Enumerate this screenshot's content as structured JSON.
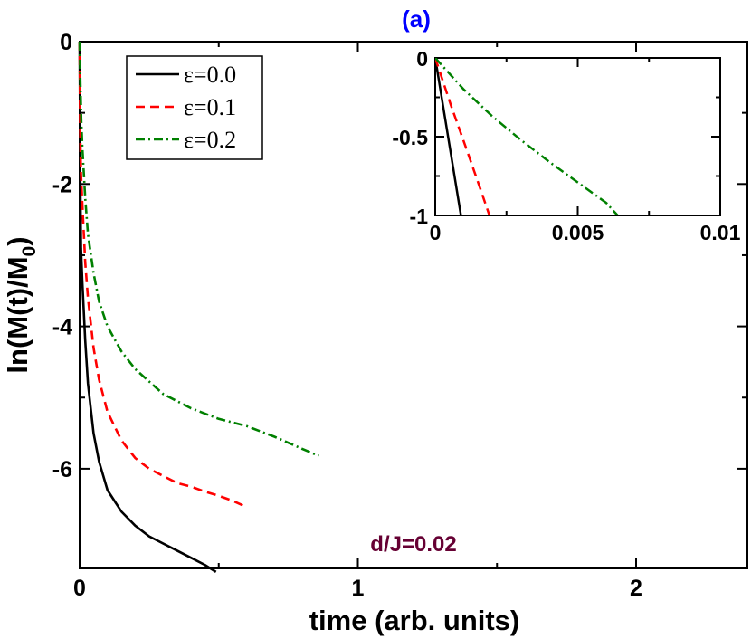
{
  "chart_data": [
    {
      "type": "line",
      "title": "(a)",
      "xlabel": "time (arb. units)",
      "ylabel": "ln(M(t)/M",
      "ylabel_sub": "0",
      "ylabel_close": ")",
      "xlim": [
        0,
        2.4
      ],
      "ylim": [
        -7.4,
        0
      ],
      "xticks": [
        0,
        1,
        2
      ],
      "xtick_labels": [
        "0",
        "1",
        "2"
      ],
      "yticks": [
        0,
        -2,
        -4,
        -6
      ],
      "ytick_labels": [
        "0",
        "-2",
        "-4",
        "-6"
      ],
      "grid": false,
      "legend_position": "top-left",
      "annotation": "d/J=0.02",
      "series": [
        {
          "name": "ε=0.0",
          "color": "#000000",
          "dash": "solid",
          "x": [
            0,
            0.002,
            0.005,
            0.01,
            0.02,
            0.03,
            0.05,
            0.07,
            0.1,
            0.15,
            0.2,
            0.25,
            0.3,
            0.35,
            0.4,
            0.45,
            0.49
          ],
          "y": [
            0,
            -1.7,
            -2.9,
            -3.4,
            -4.2,
            -4.8,
            -5.5,
            -5.9,
            -6.3,
            -6.6,
            -6.8,
            -6.95,
            -7.05,
            -7.15,
            -7.25,
            -7.35,
            -7.45
          ]
        },
        {
          "name": "ε=0.1",
          "color": "#ff0000",
          "dash": "dashed",
          "x": [
            0,
            0.002,
            0.005,
            0.01,
            0.02,
            0.03,
            0.05,
            0.07,
            0.1,
            0.15,
            0.2,
            0.25,
            0.3,
            0.35,
            0.4,
            0.45,
            0.5,
            0.55,
            0.59
          ],
          "y": [
            0,
            -1.2,
            -1.85,
            -2.3,
            -3.1,
            -3.6,
            -4.3,
            -4.75,
            -5.2,
            -5.6,
            -5.85,
            -6.0,
            -6.1,
            -6.2,
            -6.25,
            -6.32,
            -6.38,
            -6.45,
            -6.52
          ]
        },
        {
          "name": "ε=0.2",
          "color": "#008000",
          "dash": "dashdot",
          "x": [
            0,
            0.003,
            0.006,
            0.01,
            0.02,
            0.03,
            0.05,
            0.07,
            0.1,
            0.15,
            0.2,
            0.3,
            0.4,
            0.5,
            0.6,
            0.7,
            0.8,
            0.86
          ],
          "y": [
            0,
            -0.6,
            -1.1,
            -1.5,
            -2.2,
            -2.7,
            -3.25,
            -3.65,
            -4.0,
            -4.35,
            -4.6,
            -4.95,
            -5.15,
            -5.3,
            -5.4,
            -5.55,
            -5.72,
            -5.82
          ]
        }
      ]
    },
    {
      "type": "line",
      "title": "",
      "xlabel": "",
      "ylabel": "",
      "xlim": [
        0,
        0.01
      ],
      "ylim": [
        -1,
        0
      ],
      "xticks": [
        0,
        0.005,
        0.01
      ],
      "xtick_labels": [
        "0",
        "0.005",
        "0.01"
      ],
      "yticks": [
        0,
        -0.5,
        -1
      ],
      "ytick_labels": [
        "0",
        "-0.5",
        "-1"
      ],
      "grid": false,
      "legend_position": "none",
      "series": [
        {
          "name": "",
          "color": "#000000",
          "dash": "solid",
          "x": [
            0,
            0.0009
          ],
          "y": [
            0,
            -1.0
          ]
        },
        {
          "name": "",
          "color": "#ff0000",
          "dash": "dashed",
          "x": [
            0,
            0.00055,
            0.0011,
            0.0016,
            0.0019
          ],
          "y": [
            0,
            -0.3,
            -0.58,
            -0.84,
            -1.0
          ]
        },
        {
          "name": "",
          "color": "#008000",
          "dash": "dashdot",
          "x": [
            0,
            0.001,
            0.002,
            0.003,
            0.004,
            0.005,
            0.006,
            0.0064
          ],
          "y": [
            0,
            -0.2,
            -0.37,
            -0.52,
            -0.66,
            -0.79,
            -0.92,
            -1.0
          ]
        }
      ]
    }
  ],
  "colors": {
    "title": "#0000ff",
    "annotation": "#660033"
  }
}
